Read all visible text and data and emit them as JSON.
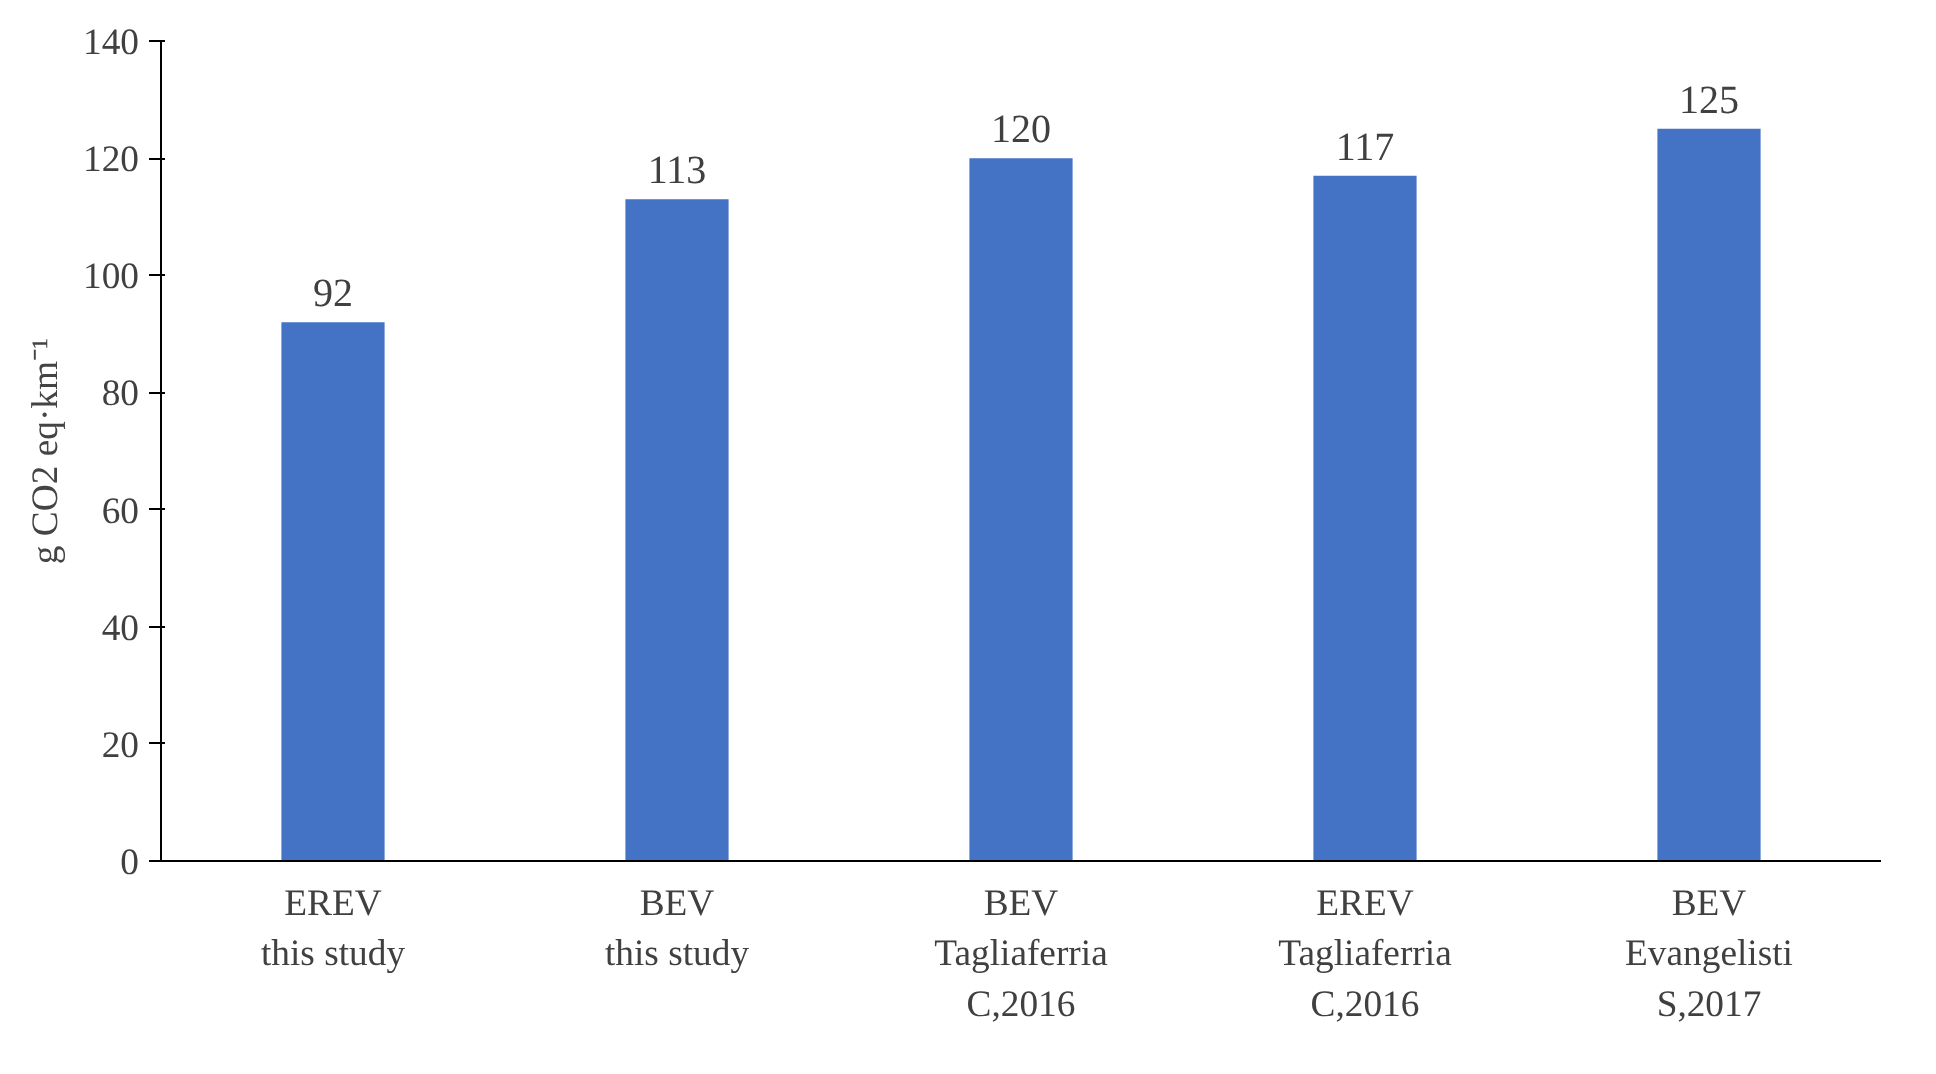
{
  "chart_data": {
    "type": "bar",
    "ylabel": "g CO2 eq·km⁻¹",
    "categories": [
      "EREV\nthis study",
      "BEV\nthis study",
      "BEV\nTagliaferria\nC,2016",
      "EREV\nTagliaferria\nC,2016",
      "BEV\nEvangelisti\nS,2017"
    ],
    "values": [
      92,
      113,
      120,
      117,
      125
    ],
    "color": "#4472c4",
    "ylim": [
      0,
      140
    ],
    "yticks": [
      0,
      20,
      40,
      60,
      80,
      100,
      120,
      140
    ],
    "data_labels": true
  }
}
